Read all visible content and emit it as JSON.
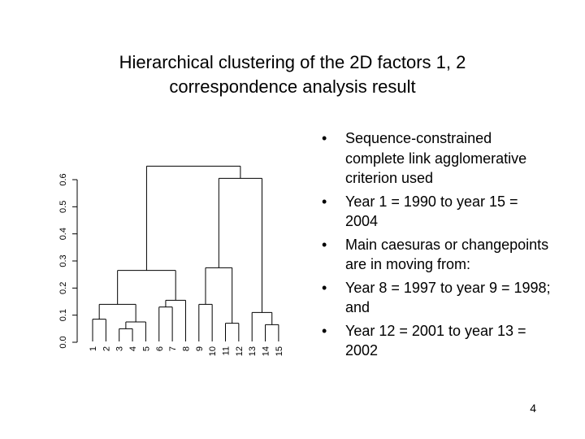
{
  "slide": {
    "title_line1": "Hierarchical clustering of the 2D factors 1, 2",
    "title_line2": "correspondence analysis result",
    "bullets": [
      "Sequence-constrained complete link agglomerative criterion used",
      "Year 1 = 1990 to year 15 = 2004",
      "Main caesuras or changepoints are in moving from:",
      "Year 8 = 1997 to year 9 = 1998; and",
      "Year 12 = 2001 to year 13 = 2002"
    ],
    "page_number": "4"
  },
  "chart_data": {
    "type": "dendrogram",
    "leaves": [
      "1",
      "2",
      "3",
      "4",
      "5",
      "6",
      "7",
      "8",
      "9",
      "10",
      "11",
      "12",
      "13",
      "14",
      "15"
    ],
    "y_ticks": [
      "0.0",
      "0.1",
      "0.2",
      "0.3",
      "0.4",
      "0.5",
      "0.6"
    ],
    "ylim": [
      0,
      0.62
    ],
    "merges": [
      {
        "a": "L1",
        "b": "L2",
        "height": 0.085
      },
      {
        "a": "L3",
        "b": "L4",
        "height": 0.05
      },
      {
        "a": "M2",
        "b": "L5",
        "height": 0.075
      },
      {
        "a": "M1",
        "b": "M3",
        "height": 0.14
      },
      {
        "a": "L6",
        "b": "L7",
        "height": 0.13
      },
      {
        "a": "M5",
        "b": "L8",
        "height": 0.155
      },
      {
        "a": "M4",
        "b": "M6",
        "height": 0.265
      },
      {
        "a": "L11",
        "b": "L12",
        "height": 0.07
      },
      {
        "a": "L9",
        "b": "L10",
        "height": 0.14
      },
      {
        "a": "M9",
        "b": "M8",
        "height": 0.275
      },
      {
        "a": "L14",
        "b": "L15",
        "height": 0.065
      },
      {
        "a": "L13",
        "b": "M11",
        "height": 0.11
      },
      {
        "a": "M10",
        "b": "M12",
        "height": 0.605
      },
      {
        "a": "M7",
        "b": "M13",
        "height": 0.65
      }
    ]
  }
}
